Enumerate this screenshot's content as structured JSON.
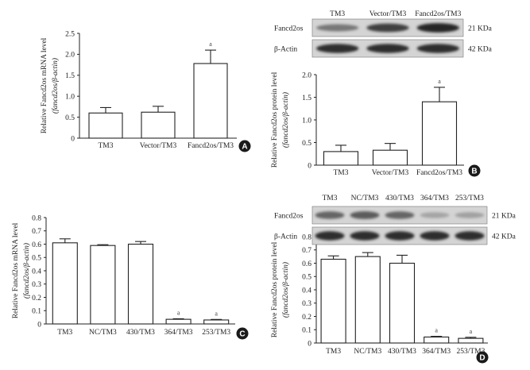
{
  "panels": [
    {
      "id": "A",
      "badge": "A",
      "ylabel": "Relative Fancd2os mRNA level",
      "ylabel_paren": "(fancd2os/β-actin)",
      "chart_data": {
        "type": "bar",
        "categories": [
          "TM3",
          "Vector/TM3",
          "Fancd2os/TM3"
        ],
        "values": [
          0.6,
          0.62,
          1.78
        ],
        "errors": [
          0.13,
          0.14,
          0.32
        ],
        "annotations": [
          "",
          "",
          "a"
        ],
        "ylim": [
          0,
          2.5
        ],
        "yticks": [
          "0",
          "0.5",
          "1.0",
          "1.5",
          "2.0",
          "2.5"
        ],
        "xlabel": "",
        "title": ""
      }
    },
    {
      "id": "B",
      "badge": "B",
      "ylabel": "Relative Fancd2os protein level",
      "ylabel_paren": "(fancd2os/β-actin)",
      "chart_data": {
        "type": "bar",
        "categories": [
          "TM3",
          "Vector/TM3",
          "Fancd2os/TM3"
        ],
        "values": [
          0.3,
          0.33,
          1.4
        ],
        "errors": [
          0.14,
          0.15,
          0.32
        ],
        "annotations": [
          "",
          "",
          "a"
        ],
        "ylim": [
          0,
          2.0
        ],
        "yticks": [
          "0",
          "0.5",
          "1.0",
          "1.5",
          "2.0"
        ],
        "xlabel": "",
        "title": ""
      }
    },
    {
      "id": "C",
      "badge": "C",
      "ylabel": "Relative Fancd2os mRNA level",
      "ylabel_paren": "(fancd2os/β-actin)",
      "chart_data": {
        "type": "bar",
        "categories": [
          "TM3",
          "NC/TM3",
          "430/TM3",
          "364/TM3",
          "253/TM3"
        ],
        "values": [
          0.61,
          0.59,
          0.6,
          0.035,
          0.03
        ],
        "errors": [
          0.03,
          0.006,
          0.02,
          0.004,
          0.004
        ],
        "annotations": [
          "",
          "",
          "",
          "a",
          "a"
        ],
        "ylim": [
          0,
          0.8
        ],
        "yticks": [
          "0",
          "0.1",
          "0.2",
          "0.3",
          "0.4",
          "0.5",
          "0.6",
          "0.7",
          "0.8"
        ],
        "xlabel": "",
        "title": ""
      }
    },
    {
      "id": "D",
      "badge": "D",
      "ylabel": "Relative Fancd2os protein level",
      "ylabel_paren": "(fancd2os/β-actin)",
      "chart_data": {
        "type": "bar",
        "categories": [
          "TM3",
          "NC/TM3",
          "430/TM3",
          "364/TM3",
          "253/TM3"
        ],
        "values": [
          0.63,
          0.65,
          0.6,
          0.045,
          0.035
        ],
        "errors": [
          0.025,
          0.03,
          0.06,
          0.005,
          0.008
        ],
        "annotations": [
          "",
          "",
          "",
          "a",
          "a"
        ],
        "ylim": [
          0,
          0.8
        ],
        "yticks": [
          "0",
          "0.1",
          "0.2",
          "0.3",
          "0.4",
          "0.5",
          "0.6",
          "0.7",
          "0.8"
        ],
        "xlabel": "",
        "title": ""
      }
    }
  ],
  "blots": {
    "B": {
      "lanes": [
        "TM3",
        "Vector/TM3",
        "Fancd2os/TM3"
      ],
      "rows": [
        {
          "label": "Fancd2os",
          "kda": "21 KDa",
          "intensity": [
            0.45,
            0.75,
            0.9
          ]
        },
        {
          "label": "β-Actin",
          "kda": "42 KDa",
          "intensity": [
            0.85,
            0.85,
            0.85
          ]
        }
      ]
    },
    "D": {
      "lanes": [
        "TM3",
        "NC/TM3",
        "430/TM3",
        "364/TM3",
        "253/TM3"
      ],
      "rows": [
        {
          "label": "Fancd2os",
          "kda": "21 KDa",
          "intensity": [
            0.55,
            0.6,
            0.55,
            0.2,
            0.22
          ]
        },
        {
          "label": "β-Actin",
          "kda": "42 KDa",
          "intensity": [
            0.85,
            0.85,
            0.85,
            0.85,
            0.85
          ]
        }
      ]
    }
  }
}
